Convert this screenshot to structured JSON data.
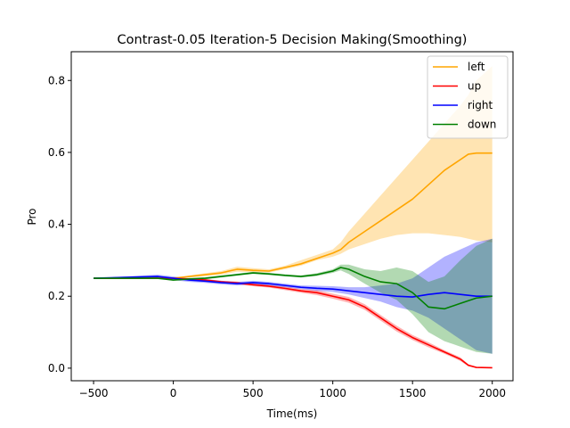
{
  "chart_data": {
    "type": "line",
    "title": "Contrast-0.05 Iteration-5 Decision Making(Smoothing)",
    "xlabel": "Time(ms)",
    "ylabel": "Pro",
    "xlim": [
      -640,
      2130
    ],
    "ylim": [
      -0.035,
      0.88
    ],
    "xticks": [
      -500,
      0,
      500,
      1000,
      1500,
      2000
    ],
    "xtick_labels": [
      "−500",
      "0",
      "500",
      "1000",
      "1500",
      "2000"
    ],
    "yticks": [
      0.0,
      0.2,
      0.4,
      0.6,
      0.8
    ],
    "ytick_labels": [
      "0.0",
      "0.2",
      "0.4",
      "0.6",
      "0.8"
    ],
    "grid": false,
    "legend_position": "top-right",
    "series": [
      {
        "name": "left",
        "color": "#ffa500",
        "x": [
          -500,
          -100,
          0,
          100,
          200,
          300,
          400,
          500,
          600,
          700,
          800,
          900,
          1000,
          1050,
          1100,
          1200,
          1300,
          1400,
          1500,
          1600,
          1700,
          1800,
          1850,
          1900,
          2000
        ],
        "y": [
          0.25,
          0.25,
          0.25,
          0.255,
          0.26,
          0.265,
          0.275,
          0.272,
          0.27,
          0.28,
          0.29,
          0.305,
          0.32,
          0.33,
          0.35,
          0.38,
          0.41,
          0.44,
          0.47,
          0.51,
          0.55,
          0.58,
          0.595,
          0.598,
          0.598
        ],
        "lower": [
          0.25,
          0.25,
          0.25,
          0.252,
          0.256,
          0.26,
          0.268,
          0.267,
          0.266,
          0.275,
          0.285,
          0.3,
          0.31,
          0.318,
          0.33,
          0.345,
          0.36,
          0.37,
          0.375,
          0.375,
          0.37,
          0.365,
          0.36,
          0.355,
          0.35
        ],
        "upper": [
          0.25,
          0.25,
          0.25,
          0.258,
          0.264,
          0.27,
          0.282,
          0.278,
          0.275,
          0.285,
          0.3,
          0.315,
          0.33,
          0.35,
          0.38,
          0.43,
          0.48,
          0.53,
          0.58,
          0.63,
          0.68,
          0.73,
          0.76,
          0.8,
          0.84
        ]
      },
      {
        "name": "up",
        "color": "#ff0000",
        "x": [
          -500,
          -100,
          0,
          100,
          200,
          300,
          400,
          500,
          600,
          700,
          800,
          900,
          1000,
          1100,
          1200,
          1300,
          1400,
          1500,
          1600,
          1700,
          1800,
          1850,
          1900,
          2000
        ],
        "y": [
          0.25,
          0.25,
          0.25,
          0.248,
          0.245,
          0.24,
          0.237,
          0.232,
          0.228,
          0.222,
          0.215,
          0.21,
          0.2,
          0.19,
          0.17,
          0.14,
          0.11,
          0.085,
          0.065,
          0.045,
          0.025,
          0.008,
          0.002,
          0.001
        ],
        "lower": [
          0.25,
          0.25,
          0.25,
          0.246,
          0.242,
          0.237,
          0.233,
          0.228,
          0.224,
          0.217,
          0.21,
          0.203,
          0.193,
          0.182,
          0.162,
          0.132,
          0.102,
          0.078,
          0.058,
          0.04,
          0.02,
          0.005,
          0.001,
          0.0
        ],
        "upper": [
          0.25,
          0.25,
          0.25,
          0.25,
          0.248,
          0.243,
          0.241,
          0.236,
          0.232,
          0.227,
          0.22,
          0.217,
          0.207,
          0.198,
          0.178,
          0.148,
          0.118,
          0.092,
          0.072,
          0.05,
          0.03,
          0.011,
          0.003,
          0.002
        ]
      },
      {
        "name": "right",
        "color": "#0000ff",
        "x": [
          -500,
          -100,
          0,
          100,
          200,
          300,
          400,
          500,
          600,
          700,
          800,
          900,
          1000,
          1100,
          1200,
          1300,
          1400,
          1500,
          1600,
          1700,
          1800,
          1900,
          2000
        ],
        "y": [
          0.25,
          0.255,
          0.25,
          0.245,
          0.242,
          0.238,
          0.235,
          0.238,
          0.235,
          0.23,
          0.225,
          0.222,
          0.22,
          0.215,
          0.21,
          0.205,
          0.2,
          0.198,
          0.205,
          0.21,
          0.205,
          0.2,
          0.2
        ],
        "lower": [
          0.25,
          0.25,
          0.245,
          0.24,
          0.237,
          0.233,
          0.23,
          0.233,
          0.23,
          0.225,
          0.22,
          0.215,
          0.212,
          0.205,
          0.195,
          0.185,
          0.17,
          0.16,
          0.14,
          0.11,
          0.08,
          0.05,
          0.04
        ],
        "upper": [
          0.25,
          0.26,
          0.255,
          0.25,
          0.247,
          0.243,
          0.24,
          0.243,
          0.24,
          0.235,
          0.23,
          0.229,
          0.228,
          0.225,
          0.225,
          0.23,
          0.235,
          0.25,
          0.28,
          0.31,
          0.33,
          0.35,
          0.36
        ]
      },
      {
        "name": "down",
        "color": "#008000",
        "x": [
          -500,
          -100,
          0,
          100,
          200,
          300,
          400,
          500,
          600,
          700,
          800,
          900,
          1000,
          1050,
          1100,
          1200,
          1300,
          1400,
          1500,
          1600,
          1700,
          1800,
          1900,
          2000
        ],
        "y": [
          0.25,
          0.25,
          0.245,
          0.248,
          0.25,
          0.255,
          0.26,
          0.265,
          0.262,
          0.258,
          0.255,
          0.26,
          0.27,
          0.28,
          0.275,
          0.255,
          0.24,
          0.235,
          0.21,
          0.17,
          0.165,
          0.18,
          0.195,
          0.2
        ],
        "lower": [
          0.25,
          0.25,
          0.243,
          0.245,
          0.247,
          0.252,
          0.257,
          0.262,
          0.259,
          0.255,
          0.252,
          0.256,
          0.265,
          0.272,
          0.262,
          0.235,
          0.21,
          0.19,
          0.15,
          0.1,
          0.075,
          0.06,
          0.045,
          0.04
        ],
        "upper": [
          0.25,
          0.25,
          0.247,
          0.251,
          0.253,
          0.258,
          0.263,
          0.268,
          0.265,
          0.261,
          0.258,
          0.264,
          0.275,
          0.288,
          0.288,
          0.275,
          0.27,
          0.28,
          0.27,
          0.24,
          0.255,
          0.3,
          0.34,
          0.36
        ]
      }
    ]
  }
}
